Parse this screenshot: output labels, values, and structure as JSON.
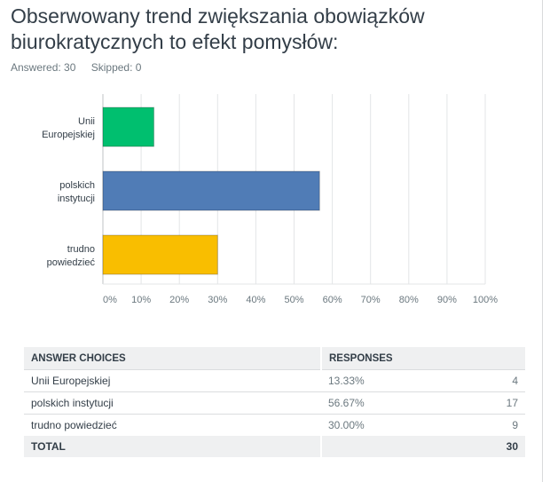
{
  "question": {
    "title": "Obserwowany trend zwiększania obowiązków biurokratycznych to efekt pomysłów:",
    "answered": "Answered: 30",
    "skipped": "Skipped: 0"
  },
  "chart_data": {
    "type": "bar",
    "orientation": "horizontal",
    "categories": [
      "Unii Europejskiej",
      "polskich instytucji",
      "trudno powiedzieć"
    ],
    "category_lines": [
      [
        "Unii",
        "Europejskiej"
      ],
      [
        "polskich",
        "instytucji"
      ],
      [
        "trudno",
        "powiedzieć"
      ]
    ],
    "values": [
      13.33,
      56.67,
      30.0
    ],
    "colors": [
      "#00bf6f",
      "#507cb6",
      "#f9be00"
    ],
    "xlim": [
      0,
      100
    ],
    "ticks": [
      "0%",
      "10%",
      "20%",
      "30%",
      "40%",
      "50%",
      "60%",
      "70%",
      "80%",
      "90%",
      "100%"
    ],
    "grid": true
  },
  "table": {
    "headers": [
      "ANSWER CHOICES",
      "RESPONSES",
      ""
    ],
    "rows": [
      {
        "choice": "Unii Europejskiej",
        "percent": "13.33%",
        "count": "4"
      },
      {
        "choice": "polskich instytucji",
        "percent": "56.67%",
        "count": "17"
      },
      {
        "choice": "trudno powiedzieć",
        "percent": "30.00%",
        "count": "9"
      }
    ],
    "total": {
      "label": "TOTAL",
      "count": "30"
    }
  }
}
